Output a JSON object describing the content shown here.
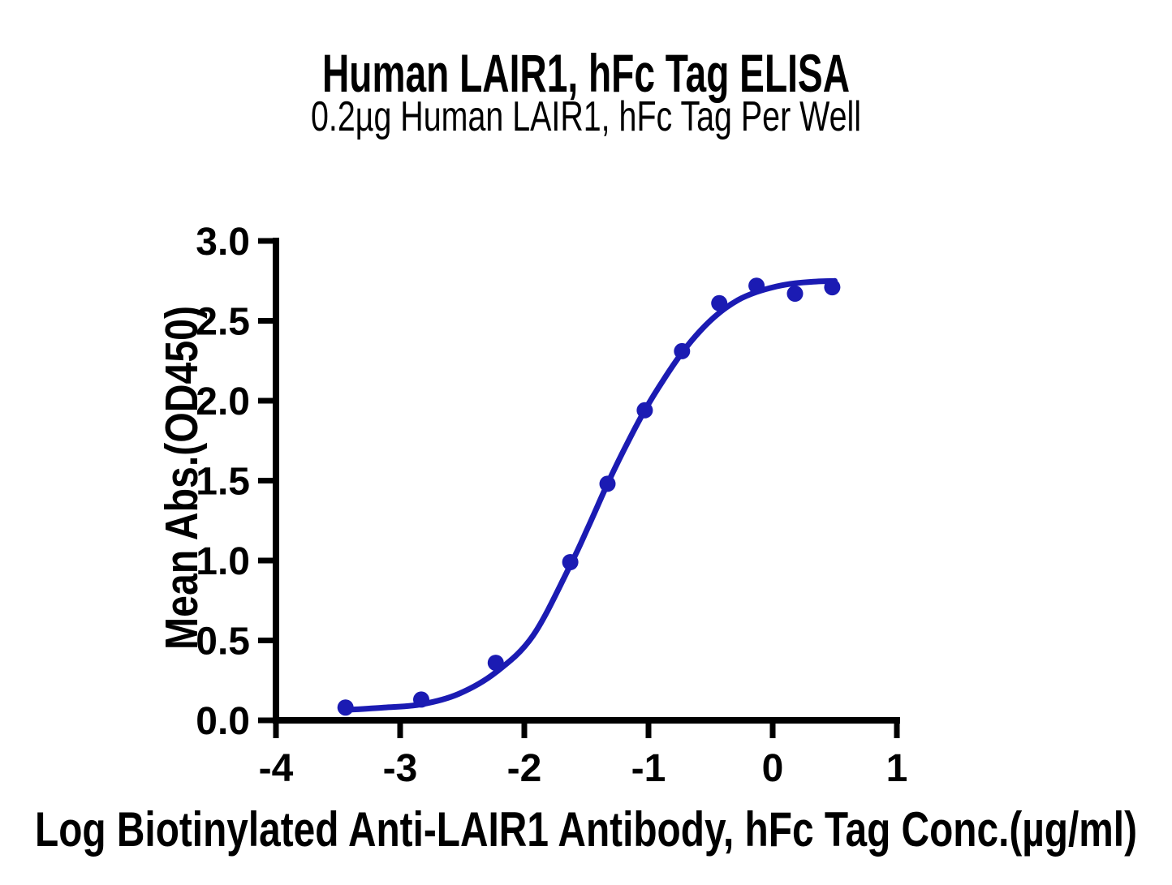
{
  "figure": {
    "background": "#ffffff",
    "text_color": "#000000"
  },
  "chart_data": {
    "type": "scatter",
    "title": "Human LAIR1, hFc Tag ELISA",
    "subtitle": "0.2µg Human LAIR1, hFc Tag Per Well",
    "xlabel": "Log Biotinylated Anti-LAIR1 Antibody, hFc Tag Conc.(µg/ml)",
    "ylabel": "Mean Abs.(OD450)",
    "xlim": [
      -4,
      1
    ],
    "ylim": [
      0.0,
      3.0
    ],
    "x_ticks": [
      -4,
      -3,
      -2,
      -1,
      0,
      1
    ],
    "x_tick_labels": [
      "-4",
      "-3",
      "-2",
      "-1",
      "0",
      "1"
    ],
    "y_ticks": [
      0.0,
      0.5,
      1.0,
      1.5,
      2.0,
      2.5,
      3.0
    ],
    "y_tick_labels": [
      "0.0",
      "0.5",
      "1.0",
      "1.5",
      "2.0",
      "2.5",
      "3.0"
    ],
    "grid": false,
    "legend": "none",
    "series": [
      {
        "name": "Mean Abs.(OD450)",
        "marker": "circle",
        "color": "#1B1BB3",
        "x": [
          -3.44,
          -2.83,
          -2.23,
          -1.63,
          -1.33,
          -1.03,
          -0.73,
          -0.43,
          -0.13,
          0.18,
          0.48
        ],
        "y": [
          0.08,
          0.13,
          0.36,
          0.99,
          1.48,
          1.94,
          2.31,
          2.61,
          2.72,
          2.67,
          2.71
        ]
      }
    ],
    "fit_curve": {
      "name": "4PL sigmoidal fit",
      "color": "#1B1BB3",
      "x": [
        -3.44,
        -3.13,
        -2.83,
        -2.53,
        -2.23,
        -1.93,
        -1.63,
        -1.48,
        -1.33,
        -1.18,
        -1.03,
        -0.88,
        -0.73,
        -0.58,
        -0.43,
        -0.28,
        -0.13,
        0.03,
        0.18,
        0.33,
        0.5
      ],
      "y": [
        0.065,
        0.08,
        0.1,
        0.165,
        0.3,
        0.53,
        0.97,
        1.22,
        1.48,
        1.72,
        1.94,
        2.13,
        2.3,
        2.44,
        2.55,
        2.63,
        2.68,
        2.715,
        2.735,
        2.745,
        2.75
      ]
    }
  }
}
